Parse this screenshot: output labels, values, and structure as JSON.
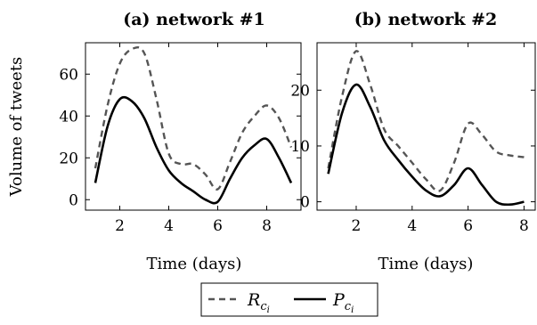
{
  "chart_data": [
    {
      "type": "line",
      "title": "(a) network #1",
      "xlabel": "Time (days)",
      "ylabel": "Volume of tweets",
      "xlim": [
        0.6,
        9.4
      ],
      "ylim": [
        -5,
        75
      ],
      "xticks": [
        2,
        4,
        6,
        8
      ],
      "yticks": [
        0,
        20,
        40,
        60
      ],
      "grid": false,
      "series": [
        {
          "name": "R_{c_i}",
          "style": "dashed",
          "color": "#555555",
          "x": [
            1,
            1.5,
            2,
            2.5,
            3,
            3.5,
            4,
            4.5,
            5,
            5.5,
            6,
            6.5,
            7,
            7.5,
            8,
            8.5,
            9
          ],
          "y": [
            15,
            45,
            65,
            72,
            70,
            48,
            22,
            17,
            17,
            12,
            5,
            18,
            32,
            40,
            45,
            39,
            25
          ]
        },
        {
          "name": "P_{c_i}",
          "style": "solid",
          "color": "#000000",
          "x": [
            1,
            1.5,
            2,
            2.5,
            3,
            3.5,
            4,
            4.5,
            5,
            5.5,
            6,
            6.5,
            7,
            7.5,
            8,
            8.5,
            9
          ],
          "y": [
            8,
            35,
            48,
            47,
            39,
            25,
            14,
            8,
            4,
            0,
            -1,
            10,
            20,
            26,
            29,
            20,
            8
          ]
        }
      ]
    },
    {
      "type": "line",
      "title": "(b) network #2",
      "xlabel": "Time (days)",
      "ylabel": "",
      "xlim": [
        0.6,
        8.4
      ],
      "ylim": [
        -1.5,
        28.5
      ],
      "xticks": [
        2,
        4,
        6,
        8
      ],
      "yticks": [
        0,
        10,
        20
      ],
      "grid": false,
      "series": [
        {
          "name": "R_{c_i}",
          "style": "dashed",
          "color": "#555555",
          "x": [
            1,
            1.5,
            2,
            2.5,
            3,
            3.5,
            4,
            4.5,
            5,
            5.5,
            6,
            6.5,
            7,
            7.5,
            8
          ],
          "y": [
            6,
            19,
            27,
            21,
            13,
            10,
            7,
            4,
            2,
            7,
            14,
            12,
            9,
            8.3,
            8
          ]
        },
        {
          "name": "P_{c_i}",
          "style": "solid",
          "color": "#000000",
          "x": [
            1,
            1.5,
            2,
            2.5,
            3,
            3.5,
            4,
            4.5,
            5,
            5.5,
            6,
            6.5,
            7,
            7.5,
            8
          ],
          "y": [
            5,
            16,
            21,
            17,
            11,
            7.5,
            4.5,
            2,
            1,
            3,
            6,
            3,
            0,
            -0.5,
            0
          ]
        }
      ]
    }
  ],
  "legend": {
    "placement": "bottom-center",
    "entries": [
      {
        "label": "R",
        "subscript": "c",
        "subsubscript": "i",
        "style": "dashed",
        "color": "#555555"
      },
      {
        "label": "P",
        "subscript": "c",
        "subsubscript": "i",
        "style": "solid",
        "color": "#000000"
      }
    ]
  }
}
